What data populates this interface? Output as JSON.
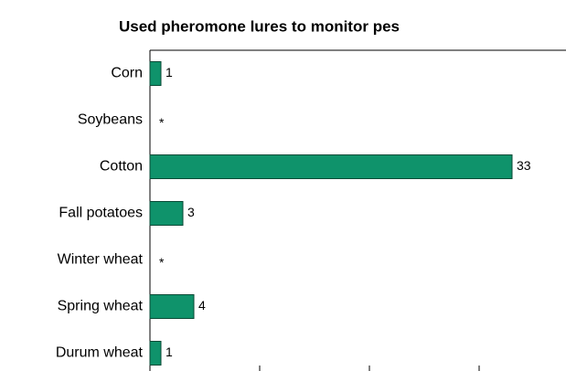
{
  "chart_data": {
    "type": "bar",
    "orientation": "horizontal",
    "title": "Used pheromone lures to monitor pes",
    "categories": [
      "Corn",
      "Soybeans",
      "Cotton",
      "Fall potatoes",
      "Winter wheat",
      "Spring wheat",
      "Durum wheat"
    ],
    "values": [
      1,
      null,
      33,
      3,
      null,
      4,
      1
    ],
    "value_labels": [
      "1",
      "*",
      "33",
      "3",
      "*",
      "4",
      "1"
    ],
    "color": "#0f936b",
    "xlim": [
      0,
      38
    ],
    "xticks": [
      0,
      10,
      20,
      30
    ]
  }
}
